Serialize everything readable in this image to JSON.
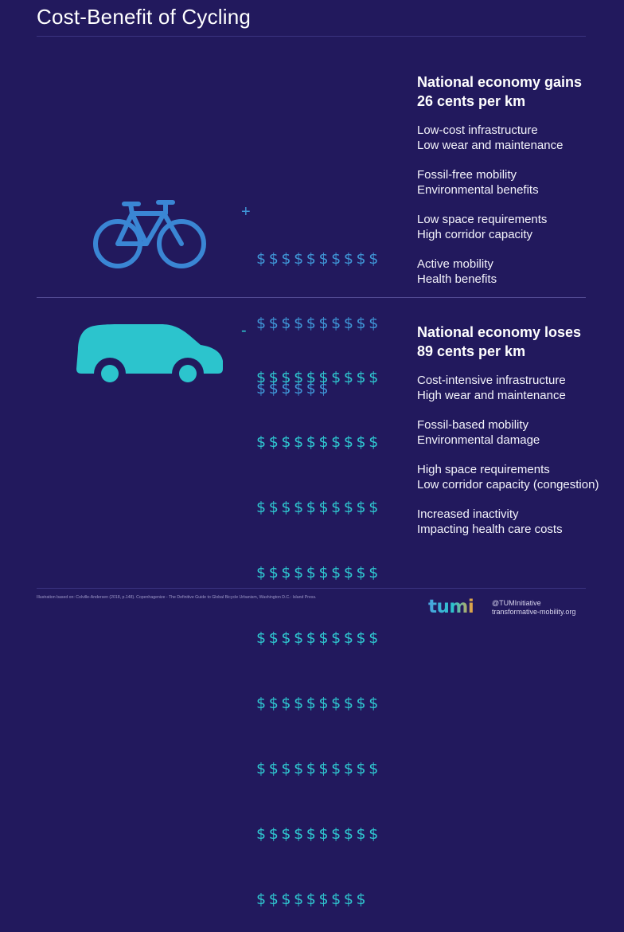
{
  "title": "Cost-Benefit of Cycling",
  "colors": {
    "background": "#22195d",
    "bike": "#3a86d4",
    "car": "#2cc4cd",
    "gain_dollars": "#3f95d6",
    "loss_dollars": "#2fc6cf",
    "divider": "#3b3381"
  },
  "cycling": {
    "icon": "bicycle-icon",
    "sign": "+",
    "dollar_rows": [
      "$$$$$$$$$$",
      "$$$$$$$$$$",
      "$$$$$$"
    ],
    "heading_line1": "National economy gains",
    "heading_line2": "26 cents per km",
    "benefits": [
      {
        "line1": "Low-cost infrastructure",
        "line2": "Low wear and maintenance"
      },
      {
        "line1": "Fossil-free mobility",
        "line2": "Environmental benefits"
      },
      {
        "line1": "Low space requirements",
        "line2": "High corridor capacity"
      },
      {
        "line1": "Active mobility",
        "line2": "Health benefits"
      }
    ]
  },
  "driving": {
    "icon": "car-icon",
    "sign": "-",
    "dollar_rows": [
      "$$$$$$$$$$",
      "$$$$$$$$$$",
      "$$$$$$$$$$",
      "$$$$$$$$$$",
      "$$$$$$$$$$",
      "$$$$$$$$$$",
      "$$$$$$$$$$",
      "$$$$$$$$$$",
      "$$$$$$$$$"
    ],
    "heading_line1": "National economy loses",
    "heading_line2": "89 cents per km",
    "costs": [
      {
        "line1": "Cost-intensive infrastructure",
        "line2": "High wear and maintenance"
      },
      {
        "line1": "Fossil-based mobility",
        "line2": "Environmental damage"
      },
      {
        "line1": "High space requirements",
        "line2": "Low corridor capacity (congestion)"
      },
      {
        "line1": "Increased inactivity",
        "line2": "Impacting health care costs"
      }
    ]
  },
  "footer": {
    "source": "Illustration based on: Colville-Andersen (2018, p.148). Copenhagenize - The Definitive Guide to Global Bicycle Urbanism, Washington D.C.: Island Press.",
    "logo_text": "tumi",
    "handle": "@TUMInitiative",
    "website": "transformative-mobility.org"
  }
}
